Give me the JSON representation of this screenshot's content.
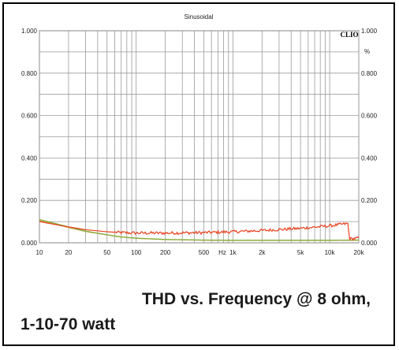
{
  "chart_data": {
    "type": "line",
    "title": "Sinusoidal",
    "brand": "CLIO",
    "xlabel": "",
    "ylabel": "",
    "x_unit_label": "Hz",
    "right_unit_label": "%",
    "xscale": "log",
    "xlim": [
      10,
      20000
    ],
    "ylim": [
      0,
      1
    ],
    "grid": true,
    "x_ticks": [
      {
        "value": 10,
        "label": "10"
      },
      {
        "value": 20,
        "label": "20"
      },
      {
        "value": 50,
        "label": "50"
      },
      {
        "value": 100,
        "label": "100"
      },
      {
        "value": 200,
        "label": "200"
      },
      {
        "value": 500,
        "label": "500"
      },
      {
        "value": 1000,
        "label": "1k"
      },
      {
        "value": 2000,
        "label": "2k"
      },
      {
        "value": 5000,
        "label": "5k"
      },
      {
        "value": 10000,
        "label": "10k"
      },
      {
        "value": 20000,
        "label": "20k"
      }
    ],
    "y_ticks": [
      {
        "value": 0,
        "label": "0.000"
      },
      {
        "value": 0.2,
        "label": "0.200"
      },
      {
        "value": 0.4,
        "label": "0.400"
      },
      {
        "value": 0.6,
        "label": "0.600"
      },
      {
        "value": 0.8,
        "label": "0.800"
      },
      {
        "value": 1.0,
        "label": "1.000"
      }
    ],
    "series": [
      {
        "color": "#e8401c",
        "noisy": true,
        "x": [
          10,
          15,
          20,
          30,
          50,
          70,
          100,
          200,
          500,
          1000,
          2000,
          5000,
          10000,
          15000,
          15500,
          16000,
          20000
        ],
        "y": [
          0.1,
          0.085,
          0.075,
          0.062,
          0.052,
          0.048,
          0.046,
          0.046,
          0.048,
          0.052,
          0.058,
          0.068,
          0.08,
          0.09,
          0.09,
          0.018,
          0.022
        ]
      },
      {
        "color": "#7fae3a",
        "noisy": false,
        "x": [
          10,
          15,
          20,
          30,
          50,
          70,
          100,
          200,
          500,
          1000,
          2000,
          5000,
          10000,
          20000
        ],
        "y": [
          0.11,
          0.09,
          0.075,
          0.055,
          0.038,
          0.028,
          0.022,
          0.016,
          0.013,
          0.012,
          0.012,
          0.012,
          0.012,
          0.013
        ]
      },
      {
        "color": "#c8a646",
        "noisy": false,
        "x": [
          10,
          15,
          20,
          30,
          50,
          70,
          100,
          200,
          500,
          1000,
          2000,
          5000,
          10000,
          20000
        ],
        "y": [
          0.105,
          0.086,
          0.072,
          0.053,
          0.037,
          0.027,
          0.021,
          0.015,
          0.012,
          0.011,
          0.011,
          0.011,
          0.011,
          0.012
        ]
      }
    ]
  },
  "caption": {
    "line1": "THD vs. Frequency @ 8 ohm,",
    "line2": "1-10-70 watt"
  }
}
